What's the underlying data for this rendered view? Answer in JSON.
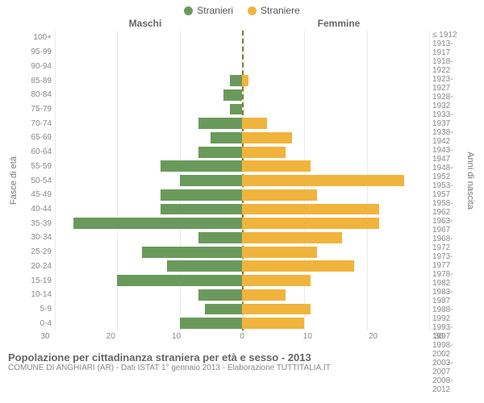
{
  "legend": {
    "male": {
      "label": "Stranieri",
      "color": "#6a9a5b"
    },
    "female": {
      "label": "Straniere",
      "color": "#f0b43c"
    }
  },
  "headers": {
    "left": "Maschi",
    "right": "Femmine"
  },
  "axis_labels": {
    "left": "Fasce di età",
    "right": "Anni di nascita"
  },
  "age_bands": [
    "100+",
    "95-99",
    "90-94",
    "85-89",
    "80-84",
    "75-79",
    "70-74",
    "65-69",
    "60-64",
    "55-59",
    "50-54",
    "45-49",
    "40-44",
    "35-39",
    "30-34",
    "25-29",
    "20-24",
    "15-19",
    "10-14",
    "5-9",
    "0-4"
  ],
  "birth_bands": [
    "≤ 1912",
    "1913-1917",
    "1918-1922",
    "1923-1927",
    "1928-1932",
    "1933-1937",
    "1938-1942",
    "1943-1947",
    "1948-1952",
    "1953-1957",
    "1958-1962",
    "1963-1967",
    "1968-1972",
    "1973-1977",
    "1978-1982",
    "1983-1987",
    "1988-1992",
    "1993-1997",
    "1998-2002",
    "2003-2007",
    "2008-2012"
  ],
  "male": [
    0,
    0,
    0,
    2,
    3,
    2,
    7,
    5,
    7,
    13,
    10,
    13,
    13,
    27,
    7,
    16,
    12,
    20,
    7,
    6,
    10
  ],
  "female": [
    0,
    0,
    0,
    1,
    0,
    0,
    4,
    8,
    7,
    11,
    26,
    12,
    22,
    22,
    16,
    12,
    18,
    11,
    7,
    11,
    10
  ],
  "x_ticks": [
    30,
    20,
    10,
    0,
    10,
    20,
    30
  ],
  "xmax": 30,
  "grid_values": [
    -30,
    -20,
    -10,
    0,
    10,
    20,
    30
  ],
  "grid_color": "rgba(0,0,0,0.08)",
  "center_color": "#8a7a2a",
  "background": "#ffffff",
  "bar_height_pct": 78,
  "footer": {
    "title": "Popolazione per cittadinanza straniera per età e sesso - 2013",
    "sub": "COMUNE DI ANGHIARI (AR) - Dati ISTAT 1° gennaio 2013 - Elaborazione TUTTITALIA.IT"
  }
}
